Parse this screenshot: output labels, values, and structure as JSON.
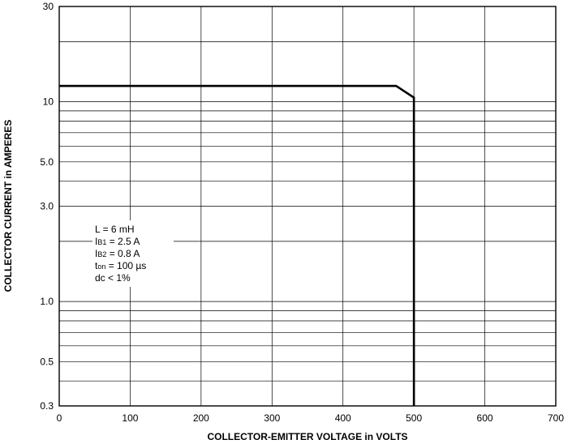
{
  "chart_data": {
    "type": "line",
    "x_axis": {
      "label": "COLLECTOR-EMITTER VOLTAGE in VOLTS",
      "range": [
        0,
        700
      ],
      "scale": "linear",
      "ticks": [
        0,
        100,
        200,
        300,
        400,
        500,
        600,
        700
      ],
      "tick_labels": [
        "0",
        "100",
        "200",
        "300",
        "400",
        "500",
        "600",
        "700"
      ]
    },
    "y_axis": {
      "label": "COLLECTOR CURRENT in AMPERES",
      "range": [
        0.3,
        30
      ],
      "scale": "log",
      "ticks": [
        0.3,
        0.5,
        1.0,
        3.0,
        5.0,
        10,
        30
      ],
      "tick_labels": [
        "0.3",
        "0.5",
        "1.0",
        "3.0",
        "5.0",
        "10",
        "30"
      ],
      "minor_gridlines": [
        0.4,
        0.5,
        0.6,
        0.7,
        0.8,
        0.9,
        1,
        2,
        3,
        4,
        5,
        6,
        7,
        8,
        9,
        10,
        20
      ]
    },
    "grid": true,
    "series": [
      {
        "x": [
          0,
          475,
          500,
          500
        ],
        "y": [
          12,
          12,
          10.5,
          0.3
        ]
      }
    ],
    "annotation": {
      "lines": [
        {
          "main": "L = 6 mH",
          "sub": ""
        },
        {
          "main": "I",
          "sub": "B1",
          "rest": " = 2.5 A"
        },
        {
          "main": "I",
          "sub": "B2",
          "rest": " = 0.8 A"
        },
        {
          "main": "t",
          "sub": "on",
          "rest": " = 100 µs"
        },
        {
          "main": "dc < 1%",
          "sub": ""
        }
      ]
    }
  }
}
